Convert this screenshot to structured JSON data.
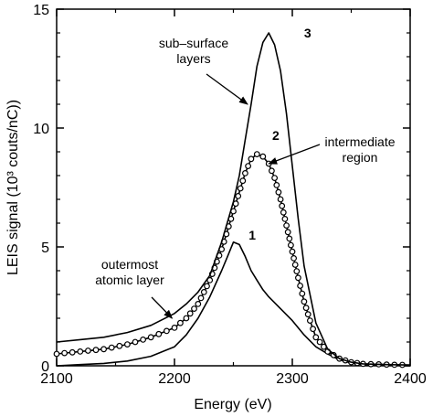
{
  "chart_data": {
    "type": "line",
    "title": "",
    "xlabel": "Energy (eV)",
    "ylabel": "LEIS signal (10³ couts/nC))",
    "xlim": [
      2100,
      2400
    ],
    "ylim": [
      0,
      15
    ],
    "xticks": [
      2100,
      2200,
      2300,
      2400
    ],
    "yticks": [
      0,
      5,
      10,
      15
    ],
    "grid": false,
    "legend": "none",
    "series": [
      {
        "name": "1",
        "marker": "none",
        "x": [
          2100,
          2120,
          2140,
          2160,
          2180,
          2200,
          2210,
          2220,
          2230,
          2240,
          2245,
          2250,
          2255,
          2260,
          2265,
          2270,
          2275,
          2280,
          2290,
          2300,
          2310,
          2320,
          2330,
          2340,
          2350,
          2360,
          2380,
          2400
        ],
        "y": [
          0.0,
          0.05,
          0.1,
          0.2,
          0.4,
          0.8,
          1.3,
          2.0,
          2.9,
          4.0,
          4.6,
          5.2,
          5.1,
          4.6,
          4.0,
          3.6,
          3.2,
          2.9,
          2.4,
          1.9,
          1.3,
          0.8,
          0.5,
          0.25,
          0.12,
          0.05,
          0.02,
          0.0
        ]
      },
      {
        "name": "2",
        "marker": "circle",
        "x": [
          2100,
          2120,
          2140,
          2160,
          2180,
          2200,
          2210,
          2220,
          2230,
          2240,
          2250,
          2260,
          2265,
          2270,
          2275,
          2280,
          2285,
          2290,
          2295,
          2300,
          2305,
          2310,
          2315,
          2320,
          2330,
          2340,
          2350,
          2360,
          2380,
          2400
        ],
        "y": [
          0.5,
          0.6,
          0.7,
          0.9,
          1.2,
          1.6,
          2.0,
          2.6,
          3.6,
          4.9,
          6.5,
          8.1,
          8.7,
          8.9,
          8.8,
          8.5,
          7.9,
          7.0,
          5.9,
          4.8,
          3.7,
          2.7,
          1.9,
          1.2,
          0.6,
          0.3,
          0.15,
          0.08,
          0.05,
          0.03
        ]
      },
      {
        "name": "3",
        "marker": "none",
        "x": [
          2100,
          2120,
          2140,
          2160,
          2180,
          2200,
          2210,
          2220,
          2230,
          2240,
          2250,
          2255,
          2260,
          2265,
          2270,
          2275,
          2280,
          2285,
          2290,
          2295,
          2300,
          2305,
          2310,
          2320,
          2330,
          2340,
          2350,
          2360,
          2380,
          2400
        ],
        "y": [
          1.0,
          1.1,
          1.2,
          1.4,
          1.7,
          2.2,
          2.6,
          3.1,
          3.8,
          5.2,
          6.9,
          8.0,
          9.5,
          11.0,
          12.6,
          13.6,
          14.0,
          13.5,
          12.4,
          10.6,
          8.4,
          6.2,
          4.2,
          1.8,
          0.7,
          0.3,
          0.15,
          0.08,
          0.05,
          0.03
        ]
      }
    ],
    "annotations": [
      {
        "text_lines": [
          "sub–surface",
          "layers"
        ],
        "target": {
          "x": 2262,
          "y": 11.0
        }
      },
      {
        "text_lines": [
          "intermediate",
          "region"
        ],
        "target": {
          "x": 2280,
          "y": 8.5
        }
      },
      {
        "text_lines": [
          "outermost",
          "atomic layer"
        ],
        "target": {
          "x": 2198,
          "y": 2.0
        }
      }
    ],
    "curve_labels": [
      {
        "text": "1",
        "x": 2266,
        "y": 5.3
      },
      {
        "text": "2",
        "x": 2286,
        "y": 9.5
      },
      {
        "text": "3",
        "x": 2313,
        "y": 13.8
      }
    ]
  }
}
